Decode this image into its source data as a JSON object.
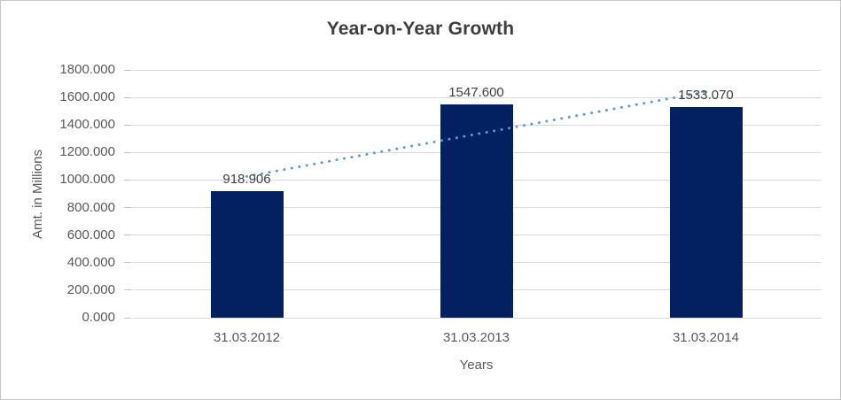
{
  "chart_data": {
    "type": "bar",
    "title": "Year-on-Year Growth",
    "xlabel": "Years",
    "ylabel": "Amt. in Millions",
    "categories": [
      "31.03.2012",
      "31.03.2013",
      "31.03.2014"
    ],
    "values": [
      918.906,
      1547.6,
      1533.07
    ],
    "data_labels": [
      "918.906",
      "1547.600",
      "1533.070"
    ],
    "y_tick_labels": [
      "1800.000",
      "1600.000",
      "1400.000",
      "1200.000",
      "1000.000",
      "800.000",
      "600.000",
      "400.000",
      "200.000",
      "0.000"
    ],
    "ylim": [
      0,
      1800
    ],
    "y_step": 200,
    "grid": true,
    "legend": "none",
    "trendline": "linear-dotted",
    "colors": {
      "bar": "#032161",
      "trendline": "#5b9bd5",
      "gridline": "#d9d9d9",
      "tick_mark": "#c0c0c0",
      "title_text": "#3d3d3d",
      "data_label_text": "#404040",
      "axis_text": "#595959",
      "border": "#c6c6c6",
      "background": "#ffffff"
    }
  }
}
